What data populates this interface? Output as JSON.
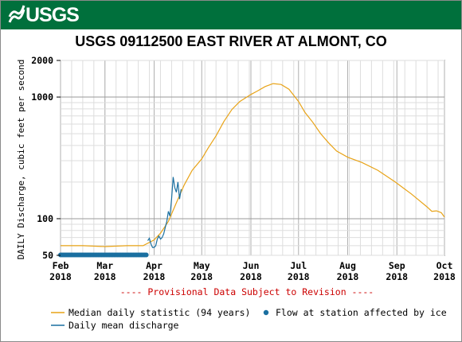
{
  "header": {
    "logo_text": "USGS"
  },
  "chart_data": {
    "type": "line",
    "title": "USGS 09112500 EAST RIVER AT ALMONT, CO",
    "ylabel": "DAILY Discharge, cubic feet per second",
    "yscale": "log",
    "ylim": [
      50,
      2000
    ],
    "y_ticks": [
      50,
      100,
      1000,
      2000
    ],
    "x_ticks": [
      {
        "date": "2018-02-01",
        "label": [
          "Feb",
          "2018"
        ]
      },
      {
        "date": "2018-03-01",
        "label": [
          "Mar",
          "2018"
        ]
      },
      {
        "date": "2018-04-01",
        "label": [
          "Apr",
          "2018"
        ]
      },
      {
        "date": "2018-05-01",
        "label": [
          "May",
          "2018"
        ]
      },
      {
        "date": "2018-06-01",
        "label": [
          "Jun",
          "2018"
        ]
      },
      {
        "date": "2018-07-01",
        "label": [
          "Jul",
          "2018"
        ]
      },
      {
        "date": "2018-08-01",
        "label": [
          "Aug",
          "2018"
        ]
      },
      {
        "date": "2018-09-01",
        "label": [
          "Sep",
          "2018"
        ]
      },
      {
        "date": "2018-10-01",
        "label": [
          "Oct",
          "2018"
        ]
      }
    ],
    "xlim": [
      "2018-02-01",
      "2018-10-01"
    ],
    "grid": true,
    "annotation": "---- Provisional Data Subject to Revision ----",
    "series": [
      {
        "name": "Median daily statistic (94 years)",
        "color": "#e8a317",
        "points": [
          [
            "2018-02-01",
            60
          ],
          [
            "2018-02-15",
            60
          ],
          [
            "2018-03-01",
            59
          ],
          [
            "2018-03-15",
            60
          ],
          [
            "2018-03-25",
            60
          ],
          [
            "2018-04-01",
            67
          ],
          [
            "2018-04-05",
            76
          ],
          [
            "2018-04-10",
            95
          ],
          [
            "2018-04-15",
            135
          ],
          [
            "2018-04-20",
            190
          ],
          [
            "2018-04-25",
            250
          ],
          [
            "2018-05-01",
            310
          ],
          [
            "2018-05-05",
            380
          ],
          [
            "2018-05-10",
            480
          ],
          [
            "2018-05-15",
            630
          ],
          [
            "2018-05-20",
            790
          ],
          [
            "2018-05-25",
            920
          ],
          [
            "2018-06-01",
            1050
          ],
          [
            "2018-06-05",
            1120
          ],
          [
            "2018-06-10",
            1220
          ],
          [
            "2018-06-15",
            1290
          ],
          [
            "2018-06-20",
            1270
          ],
          [
            "2018-06-25",
            1160
          ],
          [
            "2018-07-01",
            920
          ],
          [
            "2018-07-05",
            750
          ],
          [
            "2018-07-10",
            620
          ],
          [
            "2018-07-15",
            500
          ],
          [
            "2018-07-20",
            420
          ],
          [
            "2018-07-25",
            360
          ],
          [
            "2018-08-01",
            320
          ],
          [
            "2018-08-10",
            290
          ],
          [
            "2018-08-20",
            250
          ],
          [
            "2018-08-31",
            200
          ],
          [
            "2018-09-10",
            160
          ],
          [
            "2018-09-20",
            125
          ],
          [
            "2018-09-23",
            115
          ],
          [
            "2018-09-26",
            116
          ],
          [
            "2018-09-29",
            112
          ],
          [
            "2018-10-01",
            103
          ]
        ]
      },
      {
        "name": "Daily mean discharge",
        "color": "#1a6fa0",
        "points": [
          [
            "2018-03-28",
            66
          ],
          [
            "2018-03-29",
            69
          ],
          [
            "2018-03-30",
            62
          ],
          [
            "2018-03-31",
            58
          ],
          [
            "2018-04-01",
            58
          ],
          [
            "2018-04-02",
            60
          ],
          [
            "2018-04-03",
            68
          ],
          [
            "2018-04-04",
            72
          ],
          [
            "2018-04-05",
            68
          ],
          [
            "2018-04-06",
            70
          ],
          [
            "2018-04-07",
            75
          ],
          [
            "2018-04-08",
            85
          ],
          [
            "2018-04-09",
            95
          ],
          [
            "2018-04-10",
            115
          ],
          [
            "2018-04-11",
            105
          ],
          [
            "2018-04-12",
            145
          ],
          [
            "2018-04-13",
            220
          ],
          [
            "2018-04-14",
            180
          ],
          [
            "2018-04-15",
            165
          ],
          [
            "2018-04-16",
            200
          ],
          [
            "2018-04-17",
            145
          ],
          [
            "2018-04-18",
            175
          ]
        ]
      },
      {
        "name": "Flow at station affected by ice",
        "color": "#1a6fa0",
        "marker": "dot",
        "date_range": [
          "2018-02-01",
          "2018-03-27"
        ],
        "value": 50
      }
    ],
    "legend": {
      "placement": "bottom",
      "items": [
        {
          "label": "Median daily statistic (94 years)",
          "kind": "line",
          "color": "#e8a317"
        },
        {
          "label": "Flow at station affected by ice",
          "kind": "dot",
          "color": "#1a6fa0"
        },
        {
          "label": "Daily mean discharge",
          "kind": "line",
          "color": "#1a6fa0"
        }
      ]
    }
  }
}
